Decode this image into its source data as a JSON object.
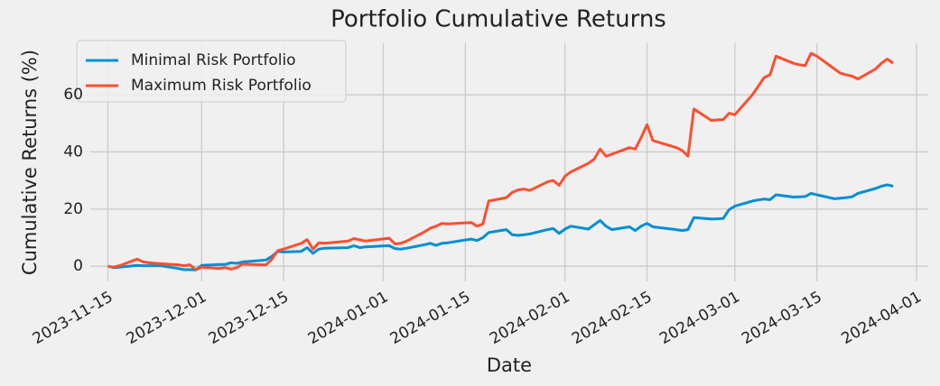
{
  "chart_data": {
    "type": "line",
    "title": "Portfolio Cumulative Returns",
    "xlabel": "Date",
    "ylabel": "Cumulative Returns (%)",
    "grid": true,
    "legend": "upper left",
    "x": [
      "2023-11-15",
      "2023-11-16",
      "2023-11-17",
      "2023-11-20",
      "2023-11-21",
      "2023-11-22",
      "2023-11-24",
      "2023-11-27",
      "2023-11-28",
      "2023-11-29",
      "2023-11-30",
      "2023-12-01",
      "2023-12-04",
      "2023-12-05",
      "2023-12-06",
      "2023-12-07",
      "2023-12-08",
      "2023-12-11",
      "2023-12-12",
      "2023-12-13",
      "2023-12-14",
      "2023-12-15",
      "2023-12-18",
      "2023-12-19",
      "2023-12-20",
      "2023-12-21",
      "2023-12-22",
      "2023-12-26",
      "2023-12-27",
      "2023-12-28",
      "2023-12-29",
      "2024-01-02",
      "2024-01-03",
      "2024-01-04",
      "2024-01-05",
      "2024-01-08",
      "2024-01-09",
      "2024-01-10",
      "2024-01-11",
      "2024-01-12",
      "2024-01-16",
      "2024-01-17",
      "2024-01-18",
      "2024-01-19",
      "2024-01-22",
      "2024-01-23",
      "2024-01-24",
      "2024-01-25",
      "2024-01-26",
      "2024-01-29",
      "2024-01-30",
      "2024-01-31",
      "2024-02-01",
      "2024-02-02",
      "2024-02-05",
      "2024-02-06",
      "2024-02-07",
      "2024-02-08",
      "2024-02-09",
      "2024-02-12",
      "2024-02-13",
      "2024-02-14",
      "2024-02-15",
      "2024-02-16",
      "2024-02-20",
      "2024-02-21",
      "2024-02-22",
      "2024-02-23",
      "2024-02-26",
      "2024-02-27",
      "2024-02-28",
      "2024-02-29",
      "2024-03-01",
      "2024-03-04",
      "2024-03-05",
      "2024-03-06",
      "2024-03-07",
      "2024-03-08",
      "2024-03-11",
      "2024-03-12",
      "2024-03-13",
      "2024-03-14",
      "2024-03-15",
      "2024-03-18",
      "2024-03-19",
      "2024-03-20",
      "2024-03-21",
      "2024-03-22",
      "2024-03-25",
      "2024-03-26",
      "2024-03-27",
      "2024-03-28"
    ],
    "series": [
      {
        "name": "Minimal Risk Portfolio",
        "color": "#008fd5",
        "values": [
          0,
          -0.5,
          -0.3,
          0.3,
          0.2,
          0.2,
          0.2,
          -0.8,
          -1.2,
          -1.2,
          -1.3,
          0.3,
          0.6,
          0.6,
          1.2,
          1,
          1.5,
          2,
          2.2,
          3.5,
          5.2,
          5,
          5.2,
          6.5,
          4.5,
          6,
          6.3,
          6.5,
          7.2,
          6.5,
          6.8,
          7.2,
          6.2,
          6,
          6.3,
          7.5,
          8,
          7.3,
          8,
          8.2,
          9.5,
          9,
          10,
          11.8,
          12.8,
          11,
          10.8,
          11,
          11.3,
          12.8,
          13.2,
          11.5,
          13,
          14,
          13,
          14.5,
          16,
          14,
          12.8,
          13.8,
          12.5,
          14,
          15,
          13.8,
          12.8,
          12.5,
          12.8,
          17,
          16.5,
          16.6,
          16.7,
          19.8,
          21,
          22.8,
          23.2,
          23.5,
          23.3,
          25,
          24.2,
          24.3,
          24.4,
          25.5,
          25,
          23.6,
          23.8,
          24,
          24.3,
          25.5,
          27.2,
          28,
          28.5,
          28
        ]
      },
      {
        "name": "Maximum Risk Portfolio",
        "color": "#fc4f30",
        "values": [
          0,
          -0.3,
          0.2,
          2.5,
          1.5,
          1.2,
          0.9,
          0.5,
          0.2,
          0.5,
          -1.2,
          -0.3,
          -0.8,
          -0.5,
          -1,
          -0.5,
          0.8,
          0.5,
          0.5,
          2.5,
          5.5,
          6,
          8,
          9.3,
          6,
          8.2,
          8,
          8.8,
          9.7,
          9.2,
          8.8,
          9.8,
          7.8,
          8,
          8.8,
          12,
          13.3,
          14,
          15,
          14.8,
          15.3,
          14,
          14.8,
          22.8,
          24,
          25.8,
          26.7,
          27,
          26.5,
          29.5,
          30,
          28.3,
          31.5,
          33,
          36,
          37.5,
          41,
          38.5,
          39.2,
          41.5,
          41,
          45,
          49.5,
          44,
          41.5,
          40.5,
          38.5,
          55,
          51,
          51.2,
          51.3,
          53.5,
          53,
          60,
          63,
          66,
          67,
          73.5,
          71,
          70.5,
          70.2,
          74.5,
          73.5,
          69,
          67.5,
          67,
          66.5,
          65.5,
          69,
          71,
          72.5,
          71
        ]
      }
    ],
    "xlim": [
      "2023-11-12",
      "2024-04-03"
    ],
    "xticks": [
      "2023-11-15",
      "2023-12-01",
      "2023-12-15",
      "2024-01-01",
      "2024-01-15",
      "2024-02-01",
      "2024-02-15",
      "2024-03-01",
      "2024-03-15",
      "2024-04-01"
    ],
    "ylim": [
      -5.3,
      78
    ],
    "yticks": [
      0,
      20,
      40,
      60
    ]
  }
}
